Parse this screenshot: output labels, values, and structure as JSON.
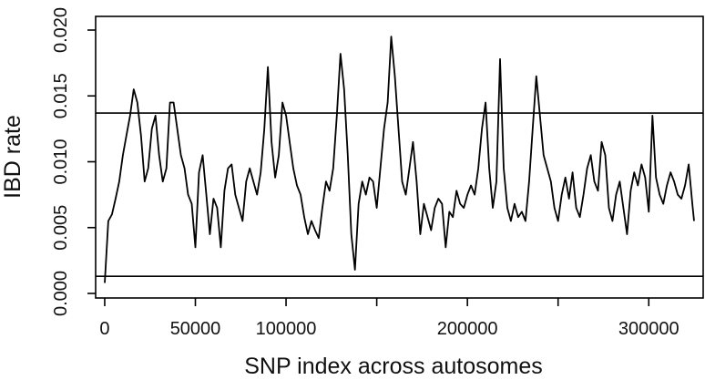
{
  "chart_data": {
    "type": "line",
    "title": "",
    "xlabel": "SNP index across autosomes",
    "ylabel": "IBD rate",
    "xlim": [
      -5000,
      330000
    ],
    "ylim": [
      0.0,
      0.02
    ],
    "xticks": [
      0,
      50000,
      100000,
      150000,
      200000,
      250000,
      300000
    ],
    "xtick_labels": [
      "0",
      "50000",
      "100000",
      "",
      "200000",
      "",
      "300000"
    ],
    "yticks": [
      0.0,
      0.005,
      0.01,
      0.015,
      0.02
    ],
    "ytick_labels": [
      "0.000",
      "0.005",
      "0.010",
      "0.015",
      "0.020"
    ],
    "hlines": [
      0.0137,
      0.0013
    ],
    "grid": false,
    "legend": "none",
    "line_color": "#000000",
    "series": [
      {
        "x": [
          0,
          2000,
          4000,
          6000,
          8000,
          10000,
          12000,
          14000,
          16000,
          18000,
          20000,
          22000,
          24000,
          26000,
          28000,
          30000,
          32000,
          34000,
          36000,
          38000,
          40000,
          42000,
          44000,
          46000,
          48000,
          50000,
          52000,
          54000,
          56000,
          58000,
          60000,
          62000,
          64000,
          66000,
          68000,
          70000,
          72000,
          74000,
          76000,
          78000,
          80000,
          82000,
          84000,
          86000,
          88000,
          90000,
          92000,
          94000,
          96000,
          98000,
          100000,
          102000,
          104000,
          106000,
          108000,
          110000,
          112000,
          114000,
          116000,
          118000,
          120000,
          122000,
          124000,
          126000,
          128000,
          130000,
          132000,
          134000,
          136000,
          138000,
          140000,
          142000,
          144000,
          146000,
          148000,
          150000,
          152000,
          154000,
          156000,
          158000,
          160000,
          162000,
          164000,
          166000,
          168000,
          170000,
          172000,
          174000,
          176000,
          178000,
          180000,
          182000,
          184000,
          186000,
          188000,
          190000,
          192000,
          194000,
          196000,
          198000,
          200000,
          202000,
          204000,
          206000,
          208000,
          210000,
          212000,
          214000,
          216000,
          218000,
          220000,
          222000,
          224000,
          226000,
          228000,
          230000,
          232000,
          234000,
          236000,
          238000,
          240000,
          242000,
          244000,
          246000,
          248000,
          250000,
          252000,
          254000,
          256000,
          258000,
          260000,
          262000,
          264000,
          266000,
          268000,
          270000,
          272000,
          274000,
          276000,
          278000,
          280000,
          282000,
          284000,
          286000,
          288000,
          290000,
          292000,
          294000,
          296000,
          298000,
          300000,
          302000,
          304000,
          306000,
          308000,
          310000,
          312000,
          314000,
          316000,
          318000,
          320000,
          322000,
          324000,
          325000
        ],
        "y": [
          0.0008,
          0.0055,
          0.006,
          0.0072,
          0.0085,
          0.0105,
          0.012,
          0.0135,
          0.0155,
          0.0145,
          0.012,
          0.0085,
          0.0095,
          0.0125,
          0.0135,
          0.0105,
          0.0085,
          0.0095,
          0.0145,
          0.0145,
          0.0125,
          0.0105,
          0.0095,
          0.0075,
          0.0068,
          0.0035,
          0.0092,
          0.0105,
          0.0075,
          0.0045,
          0.0072,
          0.0065,
          0.0035,
          0.0078,
          0.0095,
          0.0098,
          0.0075,
          0.0065,
          0.0055,
          0.0085,
          0.0095,
          0.0085,
          0.0075,
          0.0092,
          0.0125,
          0.0172,
          0.0115,
          0.0088,
          0.0105,
          0.0145,
          0.0135,
          0.0115,
          0.0095,
          0.0082,
          0.0075,
          0.0058,
          0.0045,
          0.0055,
          0.0048,
          0.0042,
          0.0065,
          0.0085,
          0.0078,
          0.0095,
          0.0135,
          0.0182,
          0.0155,
          0.0105,
          0.0045,
          0.0018,
          0.0068,
          0.0085,
          0.0075,
          0.0088,
          0.0085,
          0.0065,
          0.0095,
          0.0125,
          0.0145,
          0.0195,
          0.0165,
          0.0125,
          0.0085,
          0.0075,
          0.0095,
          0.0115,
          0.0085,
          0.0045,
          0.0068,
          0.0058,
          0.0048,
          0.0065,
          0.0072,
          0.0068,
          0.0035,
          0.0062,
          0.0058,
          0.0078,
          0.0068,
          0.0065,
          0.0075,
          0.0082,
          0.0075,
          0.0095,
          0.0125,
          0.0145,
          0.0095,
          0.0065,
          0.0085,
          0.0178,
          0.0095,
          0.0065,
          0.0055,
          0.0068,
          0.0058,
          0.0062,
          0.0055,
          0.0085,
          0.0125,
          0.0165,
          0.0135,
          0.0105,
          0.0095,
          0.0085,
          0.0065,
          0.0055,
          0.0075,
          0.0088,
          0.0072,
          0.0092,
          0.0065,
          0.0058,
          0.0075,
          0.0095,
          0.0105,
          0.0085,
          0.0078,
          0.0115,
          0.0105,
          0.0065,
          0.0055,
          0.0075,
          0.0085,
          0.0065,
          0.0045,
          0.0078,
          0.0092,
          0.0082,
          0.0098,
          0.0088,
          0.0062,
          0.0135,
          0.0088,
          0.0075,
          0.0068,
          0.0082,
          0.0092,
          0.0085,
          0.0075,
          0.0072,
          0.0082,
          0.0098,
          0.0068,
          0.0055
        ]
      }
    ]
  }
}
